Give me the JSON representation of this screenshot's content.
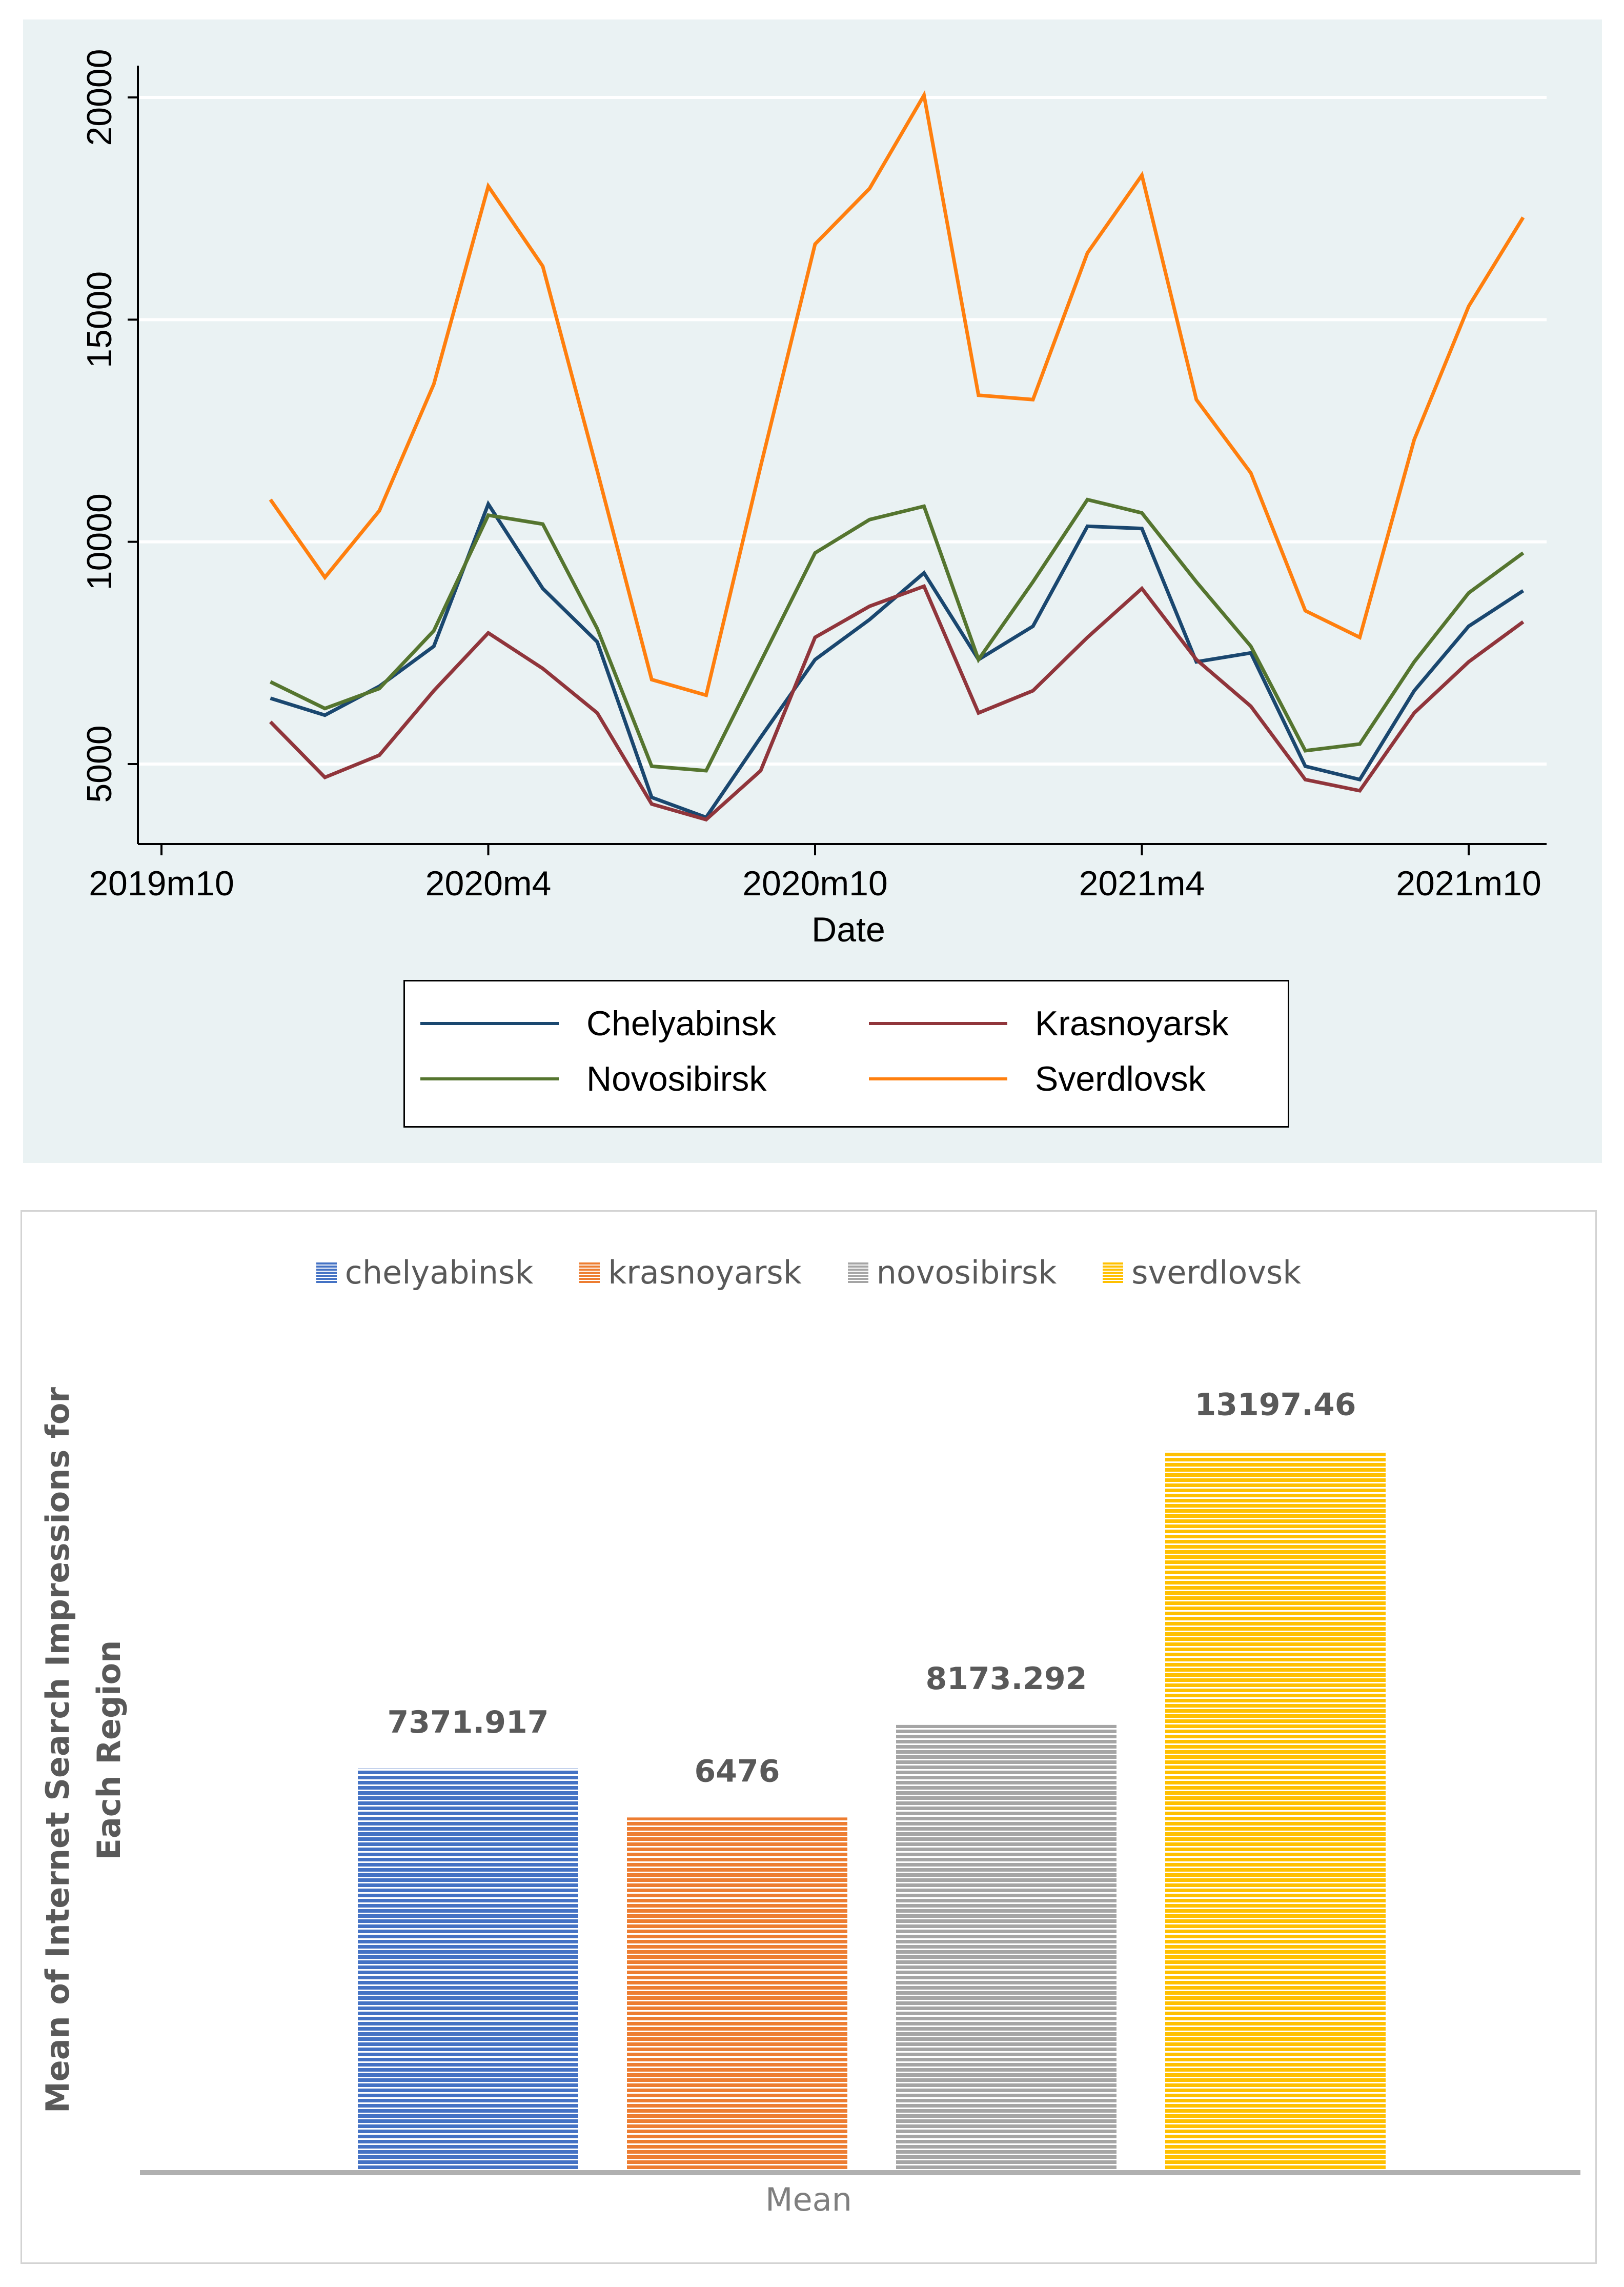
{
  "chart_data": [
    {
      "type": "line",
      "xlabel": "Date",
      "ylabel": "",
      "x_ticks": [
        "2019m10",
        "2020m4",
        "2020m10",
        "2021m4",
        "2021m10"
      ],
      "y_ticks": [
        "5000",
        "10000",
        "15000",
        "20000"
      ],
      "ylim": [
        3200,
        20600
      ],
      "grid": true,
      "legend_position": "bottom",
      "x": [
        "2019m12",
        "2020m1",
        "2020m2",
        "2020m3",
        "2020m4",
        "2020m5",
        "2020m6",
        "2020m7",
        "2020m8",
        "2020m9",
        "2020m10",
        "2020m11",
        "2020m12",
        "2021m1",
        "2021m2",
        "2021m3",
        "2021m4",
        "2021m5",
        "2021m6",
        "2021m7",
        "2021m8",
        "2021m9",
        "2021m10",
        "2021m11"
      ],
      "series": [
        {
          "name": "Chelyabinsk",
          "color": "#1a476f",
          "values": [
            6480,
            6100,
            6750,
            7650,
            10850,
            8950,
            7750,
            4250,
            3800,
            5600,
            7350,
            8250,
            9300,
            7350,
            8100,
            10350,
            10300,
            7300,
            7500,
            4950,
            4650,
            6650,
            8100,
            8900
          ]
        },
        {
          "name": "Krasnoyarsk",
          "color": "#90353b",
          "values": [
            5950,
            4700,
            5200,
            6650,
            7950,
            7150,
            6150,
            4100,
            3750,
            4850,
            7850,
            8550,
            9000,
            6150,
            6650,
            7850,
            8950,
            7350,
            6300,
            4650,
            4400,
            6150,
            7300,
            8200
          ]
        },
        {
          "name": "Novosibirsk",
          "color": "#55752f",
          "values": [
            6850,
            6250,
            6700,
            8000,
            10600,
            10400,
            8050,
            4950,
            4850,
            7300,
            9750,
            10500,
            10800,
            7350,
            9100,
            10950,
            10650,
            9100,
            7650,
            5300,
            5450,
            7300,
            8850,
            9750
          ]
        },
        {
          "name": "Sverdlovsk",
          "color": "#ff7f0e",
          "values": [
            10950,
            9200,
            10700,
            13550,
            18000,
            16200,
            11600,
            6900,
            6550,
            11700,
            16700,
            17950,
            20050,
            13300,
            13200,
            16500,
            18250,
            13200,
            11550,
            8450,
            7850,
            12300,
            15300,
            17300
          ]
        }
      ]
    },
    {
      "type": "bar",
      "categories": [
        "Mean"
      ],
      "xlabel": "Mean",
      "ylabel": "Mean of Internet Search Impressions for Each Region",
      "ylim": [
        0,
        14200
      ],
      "legend_position": "top",
      "series": [
        {
          "name": "chelyabinsk",
          "color": "#4472c4",
          "values": [
            7371.917
          ],
          "label": "7371.917"
        },
        {
          "name": "krasnoyarsk",
          "color": "#ed7d31",
          "values": [
            6476
          ],
          "label": "6476"
        },
        {
          "name": "novosibirsk",
          "color": "#a5a5a5",
          "values": [
            8173.292
          ],
          "label": "8173.292"
        },
        {
          "name": "sverdlovsk",
          "color": "#ffc000",
          "values": [
            13197.46
          ],
          "label": "13197.46"
        }
      ]
    }
  ]
}
